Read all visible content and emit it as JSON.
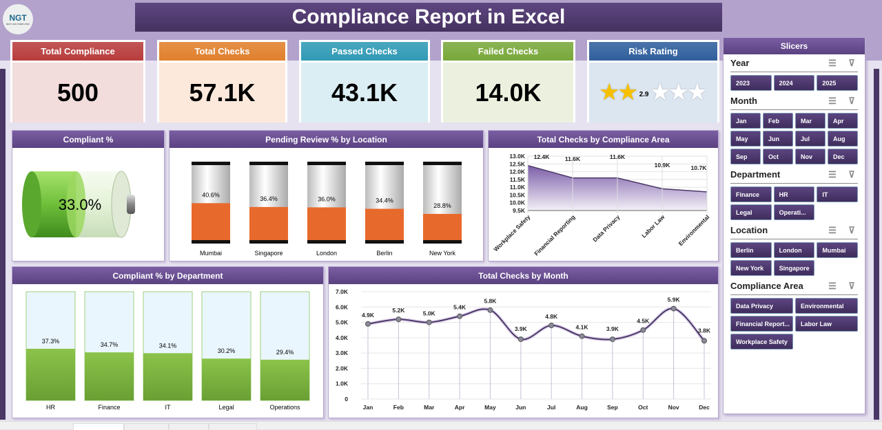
{
  "logo": {
    "text": "NGT",
    "sub": "NEXT GEN TEMPLATES"
  },
  "title": "Compliance Report in Excel",
  "kpis": [
    {
      "label": "Total Compliance",
      "value": "500",
      "color": "#b83c3c",
      "bg": "#f2dcdc"
    },
    {
      "label": "Total Checks",
      "value": "57.1K",
      "color": "#e0802c",
      "bg": "#fde9dc"
    },
    {
      "label": "Passed Checks",
      "value": "43.1K",
      "color": "#2f9ab5",
      "bg": "#dbeef4"
    },
    {
      "label": "Failed Checks",
      "value": "14.0K",
      "color": "#79a83a",
      "bg": "#ebf1de"
    },
    {
      "label": "Risk Rating",
      "value": "2.9",
      "color": "#2f5f9d",
      "bg": "#dce6f1",
      "stars_max": 5
    }
  ],
  "panels": {
    "compliant": "Compliant %",
    "pending": "Pending Review % by Location",
    "area": "Total Checks by Compliance Area",
    "dept": "Compliant % by Department",
    "month": "Total Checks by Month"
  },
  "chart_data": [
    {
      "type": "gauge",
      "title": "Compliant %",
      "value": 33.0,
      "label": "33.0%"
    },
    {
      "type": "bar",
      "title": "Pending Review % by Location",
      "categories": [
        "Mumbai",
        "Singapore",
        "London",
        "Berlin",
        "New York"
      ],
      "values": [
        40.6,
        36.4,
        36.0,
        34.4,
        28.8
      ],
      "labels": [
        "40.6%",
        "36.4%",
        "36.0%",
        "34.4%",
        "28.8%"
      ],
      "ylim": [
        0,
        100
      ],
      "color": "#e8692c"
    },
    {
      "type": "area",
      "title": "Total Checks by Compliance Area",
      "categories": [
        "Workplace Safety",
        "Financial Reporting",
        "Data Privacy",
        "Labor Law",
        "Environmental"
      ],
      "values": [
        12.4,
        11.6,
        11.6,
        10.9,
        10.7
      ],
      "labels": [
        "12.4K",
        "11.6K",
        "11.6K",
        "10.9K",
        "10.7K"
      ],
      "yticks": [
        "9.5K",
        "10.0K",
        "10.5K",
        "11.0K",
        "11.5K",
        "12.0K",
        "12.5K",
        "13.0K"
      ],
      "ylim": [
        9.5,
        13.0
      ],
      "unit": "K",
      "color": "#6b4f92",
      "grid": true
    },
    {
      "type": "bar",
      "title": "Compliant % by Department",
      "categories": [
        "HR",
        "Finance",
        "IT",
        "Legal",
        "Operations"
      ],
      "values": [
        37.3,
        34.7,
        34.1,
        30.2,
        29.4
      ],
      "labels": [
        "37.3%",
        "34.7%",
        "34.1%",
        "30.2%",
        "29.4%"
      ],
      "ylim": [
        0,
        100
      ],
      "color": "#7cb342"
    },
    {
      "type": "line",
      "title": "Total Checks by Month",
      "categories": [
        "Jan",
        "Feb",
        "Mar",
        "Apr",
        "May",
        "Jun",
        "Jul",
        "Aug",
        "Sep",
        "Oct",
        "Nov",
        "Dec"
      ],
      "values": [
        4.9,
        5.2,
        5.0,
        5.4,
        5.8,
        3.9,
        4.8,
        4.1,
        3.9,
        4.5,
        5.9,
        3.8
      ],
      "labels": [
        "4.9K",
        "5.2K",
        "5.0K",
        "5.4K",
        "5.8K",
        "3.9K",
        "4.8K",
        "4.1K",
        "3.9K",
        "4.5K",
        "5.9K",
        "3.8K"
      ],
      "yticks": [
        "0",
        "1.0K",
        "2.0K",
        "3.0K",
        "4.0K",
        "5.0K",
        "6.0K",
        "7.0K"
      ],
      "ylim": [
        0,
        7
      ],
      "unit": "K",
      "color": "#4a3766",
      "grid": true
    }
  ],
  "slicers": {
    "title": "Slicers",
    "groups": [
      {
        "name": "Year",
        "cols": 3,
        "items": [
          "2023",
          "2024",
          "2025"
        ]
      },
      {
        "name": "Month",
        "cols": 4,
        "items": [
          "Jan",
          "Feb",
          "Mar",
          "Apr",
          "May",
          "Jun",
          "Jul",
          "Aug",
          "Sep",
          "Oct",
          "Nov",
          "Dec"
        ]
      },
      {
        "name": "Department",
        "cols": 3,
        "items": [
          "Finance",
          "HR",
          "IT",
          "Legal",
          "Operati..."
        ]
      },
      {
        "name": "Location",
        "cols": 3,
        "items": [
          "Berlin",
          "London",
          "Mumbai",
          "New York",
          "Singapore"
        ]
      },
      {
        "name": "Compliance Area",
        "cols": 2,
        "items": [
          "Data Privacy",
          "Environmental",
          "Financial Report...",
          "Labor Law",
          "Workplace Safety"
        ]
      }
    ]
  }
}
